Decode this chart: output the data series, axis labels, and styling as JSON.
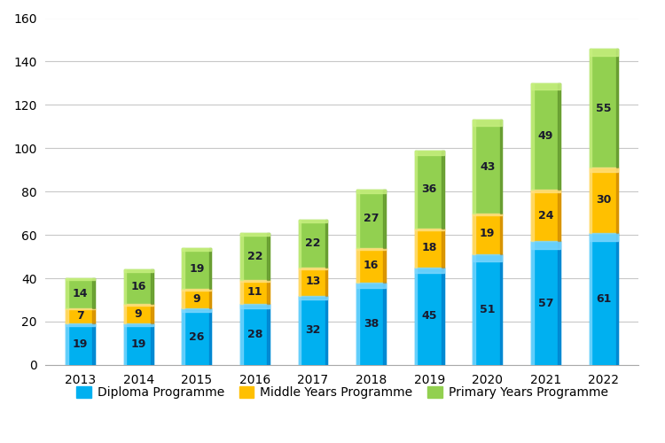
{
  "years": [
    "2013",
    "2014",
    "2015",
    "2016",
    "2017",
    "2018",
    "2019",
    "2020",
    "2021",
    "2022"
  ],
  "diploma": [
    19,
    19,
    26,
    28,
    32,
    38,
    45,
    51,
    57,
    61
  ],
  "middle": [
    7,
    9,
    9,
    11,
    13,
    16,
    18,
    19,
    24,
    30
  ],
  "primary": [
    14,
    16,
    19,
    22,
    22,
    27,
    36,
    43,
    49,
    55
  ],
  "diploma_color": "#00B0F0",
  "diploma_color_dark": "#0070C0",
  "diploma_color_light": "#80D8FF",
  "middle_color": "#FFC000",
  "middle_color_dark": "#C07800",
  "middle_color_light": "#FFE080",
  "primary_color": "#92D050",
  "primary_color_dark": "#508020",
  "primary_color_light": "#C8F080",
  "ylim": [
    0,
    160
  ],
  "yticks": [
    0,
    20,
    40,
    60,
    80,
    100,
    120,
    140,
    160
  ],
  "legend_labels": [
    "Diploma Programme",
    "Middle Years Programme",
    "Primary Years Programme"
  ],
  "bar_width": 0.5,
  "label_fontsize": 9,
  "tick_fontsize": 10,
  "legend_fontsize": 10,
  "background_color": "#ffffff",
  "grid_color": "#c8c8c8"
}
